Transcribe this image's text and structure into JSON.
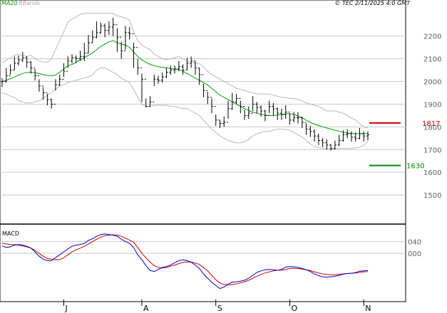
{
  "header": {
    "ma_label": "MA20",
    "bb_label": "BBands",
    "source": "© TEC 2/11/2025 4:0 GMT"
  },
  "colors": {
    "ma": "#00a000",
    "bbands": "#b8b8b8",
    "price": "#000000",
    "grid": "#c8c8c8",
    "resistance": "#cc0000",
    "support": "#008800",
    "macd_line": "#0000cc",
    "signal_line": "#cc0000"
  },
  "chart_data": [
    {
      "type": "candlestick",
      "title": "",
      "y_ticks": [
        2200,
        2100,
        2000,
        1900,
        1800,
        1700,
        1600,
        1500
      ],
      "ylim": [
        1400,
        2340
      ],
      "x_ticks": [
        "J",
        "A",
        "S",
        "O",
        "N"
      ],
      "x_tick_index": [
        15,
        34,
        52,
        70,
        88
      ],
      "grid": true,
      "levels": [
        {
          "name": "resistance",
          "value": 1817,
          "label": "1817"
        },
        {
          "name": "support",
          "value": 1630,
          "label": "1630"
        }
      ],
      "close": [
        2000,
        2025,
        2050,
        2080,
        2095,
        2105,
        2085,
        2060,
        2025,
        1980,
        1950,
        1920,
        1900,
        1985,
        2010,
        2045,
        2090,
        2105,
        2100,
        2110,
        2125,
        2170,
        2195,
        2215,
        2245,
        2225,
        2240,
        2250,
        2195,
        2135,
        2215,
        2210,
        2150,
        2060,
        2010,
        1890,
        1910,
        2010,
        2005,
        2020,
        2040,
        2050,
        2055,
        2065,
        2050,
        2080,
        2090,
        2060,
        2030,
        1960,
        1930,
        1890,
        1830,
        1815,
        1820,
        1880,
        1910,
        1925,
        1890,
        1850,
        1860,
        1900,
        1885,
        1870,
        1850,
        1890,
        1880,
        1860,
        1855,
        1865,
        1830,
        1840,
        1840,
        1820,
        1790,
        1780,
        1760,
        1740,
        1730,
        1720,
        1705,
        1720,
        1740,
        1765,
        1770,
        1755,
        1750,
        1770,
        1760,
        1765
      ],
      "high": [
        2015,
        2060,
        2075,
        2110,
        2115,
        2130,
        2110,
        2090,
        2055,
        2010,
        1975,
        1945,
        1925,
        2010,
        2030,
        2080,
        2110,
        2120,
        2115,
        2135,
        2170,
        2205,
        2225,
        2265,
        2260,
        2255,
        2265,
        2280,
        2235,
        2175,
        2245,
        2240,
        2170,
        2100,
        2035,
        1925,
        1935,
        2030,
        2025,
        2040,
        2060,
        2070,
        2070,
        2090,
        2075,
        2105,
        2110,
        2090,
        2060,
        1990,
        1955,
        1925,
        1855,
        1830,
        1845,
        1915,
        1950,
        1945,
        1915,
        1875,
        1890,
        1935,
        1910,
        1895,
        1875,
        1915,
        1905,
        1885,
        1880,
        1895,
        1860,
        1865,
        1865,
        1845,
        1815,
        1805,
        1790,
        1770,
        1750,
        1745,
        1725,
        1740,
        1765,
        1785,
        1790,
        1780,
        1775,
        1795,
        1780,
        1780
      ],
      "low": [
        1975,
        1995,
        2030,
        2050,
        2070,
        2085,
        2060,
        2035,
        2005,
        1955,
        1920,
        1895,
        1880,
        1960,
        1980,
        2020,
        2060,
        2080,
        2080,
        2090,
        2090,
        2125,
        2170,
        2190,
        2210,
        2195,
        2205,
        2200,
        2130,
        2100,
        2140,
        2185,
        2060,
        2030,
        1910,
        1885,
        1890,
        1980,
        1990,
        1995,
        2015,
        2030,
        2035,
        2045,
        2030,
        2050,
        2060,
        2030,
        1985,
        1930,
        1900,
        1860,
        1805,
        1795,
        1800,
        1835,
        1875,
        1900,
        1860,
        1830,
        1835,
        1870,
        1860,
        1845,
        1825,
        1860,
        1850,
        1830,
        1830,
        1835,
        1810,
        1820,
        1815,
        1795,
        1765,
        1755,
        1735,
        1720,
        1710,
        1700,
        1695,
        1700,
        1715,
        1735,
        1750,
        1735,
        1735,
        1745,
        1735,
        1740
      ],
      "ma20": [
        2000,
        2005,
        2012,
        2020,
        2028,
        2035,
        2040,
        2040,
        2038,
        2035,
        2030,
        2027,
        2025,
        2028,
        2040,
        2055,
        2070,
        2075,
        2085,
        2095,
        2105,
        2115,
        2125,
        2140,
        2155,
        2165,
        2175,
        2180,
        2170,
        2165,
        2160,
        2150,
        2130,
        2110,
        2095,
        2085,
        2075,
        2070,
        2065,
        2062,
        2060,
        2057,
        2055,
        2052,
        2045,
        2035,
        2025,
        2015,
        2005,
        1995,
        1985,
        1970,
        1955,
        1940,
        1930,
        1920,
        1910,
        1900,
        1890,
        1880,
        1872,
        1865,
        1860,
        1855,
        1852,
        1850,
        1850,
        1852,
        1855,
        1857,
        1858,
        1855,
        1848,
        1840,
        1830,
        1820,
        1812,
        1806,
        1800,
        1795,
        1790,
        1785,
        1780,
        1776,
        1773,
        1771,
        1770,
        1770,
        1770,
        1770
      ],
      "bb_upper": [
        2080,
        2095,
        2105,
        2115,
        2120,
        2115,
        2110,
        2115,
        2100,
        2090,
        2085,
        2085,
        2100,
        2140,
        2180,
        2220,
        2260,
        2275,
        2285,
        2295,
        2300,
        2300,
        2300,
        2300,
        2300,
        2300,
        2300,
        2300,
        2290,
        2285,
        2280,
        2270,
        2220,
        2180,
        2160,
        2150,
        2140,
        2120,
        2110,
        2100,
        2095,
        2100,
        2105,
        2110,
        2100,
        2090,
        2085,
        2080,
        2080,
        2065,
        2045,
        2030,
        2020,
        2010,
        2000,
        1990,
        1980,
        1970,
        1965,
        1960,
        1955,
        1950,
        1945,
        1945,
        1945,
        1945,
        1940,
        1935,
        1930,
        1930,
        1925,
        1925,
        1920,
        1915,
        1905,
        1900,
        1895,
        1890,
        1880,
        1870,
        1870,
        1870,
        1865,
        1860,
        1850,
        1840,
        1830,
        1815,
        1800,
        1795
      ],
      "bb_lower": [
        1950,
        1945,
        1935,
        1930,
        1915,
        1910,
        1905,
        1905,
        1910,
        1915,
        1925,
        1940,
        1950,
        1965,
        1980,
        1985,
        1995,
        2000,
        2005,
        2010,
        2015,
        2020,
        2030,
        2050,
        2060,
        2060,
        2050,
        2040,
        2030,
        2015,
        2005,
        1995,
        1965,
        1930,
        1900,
        1890,
        1890,
        1895,
        1895,
        1895,
        1895,
        1890,
        1890,
        1885,
        1880,
        1880,
        1870,
        1860,
        1850,
        1830,
        1810,
        1790,
        1775,
        1760,
        1750,
        1740,
        1735,
        1730,
        1730,
        1735,
        1745,
        1760,
        1770,
        1775,
        1780,
        1780,
        1785,
        1790,
        1790,
        1790,
        1785,
        1775,
        1765,
        1755,
        1740,
        1725,
        1715,
        1708,
        1705,
        1703,
        1703,
        1703,
        1705,
        1705,
        1705,
        1705,
        1708,
        1710,
        1720,
        1735
      ]
    },
    {
      "type": "line",
      "title": "MACD",
      "y_ticks": [
        40,
        0
      ],
      "y_tick_labels": [
        "040",
        "000"
      ],
      "ylim": [
        -155,
        90
      ],
      "series": [
        {
          "name": "MACD",
          "values": [
            25,
            20,
            22,
            28,
            30,
            28,
            24,
            18,
            5,
            -10,
            -20,
            -25,
            -25,
            -15,
            -5,
            5,
            15,
            24,
            28,
            30,
            34,
            44,
            50,
            58,
            64,
            66,
            64,
            62,
            58,
            48,
            40,
            34,
            20,
            -5,
            -22,
            -42,
            -58,
            -62,
            -55,
            -48,
            -45,
            -40,
            -32,
            -25,
            -22,
            -25,
            -30,
            -40,
            -52,
            -70,
            -85,
            -99,
            -110,
            -120,
            -115,
            -105,
            -98,
            -97,
            -95,
            -92,
            -85,
            -75,
            -65,
            -60,
            -56,
            -55,
            -56,
            -58,
            -55,
            -47,
            -45,
            -46,
            -48,
            -52,
            -56,
            -62,
            -70,
            -76,
            -80,
            -81,
            -80,
            -78,
            -75,
            -71,
            -69,
            -68,
            -66,
            -61,
            -60,
            -58
          ]
        },
        {
          "name": "Signal",
          "values": [
            35,
            32,
            30,
            30,
            28,
            25,
            22,
            18,
            10,
            0,
            -10,
            -18,
            -20,
            -22,
            -21,
            -15,
            -5,
            5,
            12,
            18,
            24,
            32,
            40,
            48,
            55,
            60,
            62,
            63,
            62,
            58,
            52,
            45,
            38,
            20,
            0,
            -15,
            -30,
            -42,
            -48,
            -50,
            -48,
            -44,
            -40,
            -35,
            -31,
            -29,
            -30,
            -33,
            -38,
            -48,
            -60,
            -75,
            -90,
            -101,
            -106,
            -108,
            -106,
            -104,
            -101,
            -97,
            -92,
            -85,
            -78,
            -72,
            -67,
            -63,
            -60,
            -58,
            -57,
            -55,
            -52,
            -51,
            -52,
            -54,
            -56,
            -59,
            -63,
            -67,
            -70,
            -72,
            -73,
            -73,
            -72,
            -70,
            -69,
            -68,
            -67,
            -65,
            -63,
            -62
          ]
        }
      ]
    }
  ]
}
